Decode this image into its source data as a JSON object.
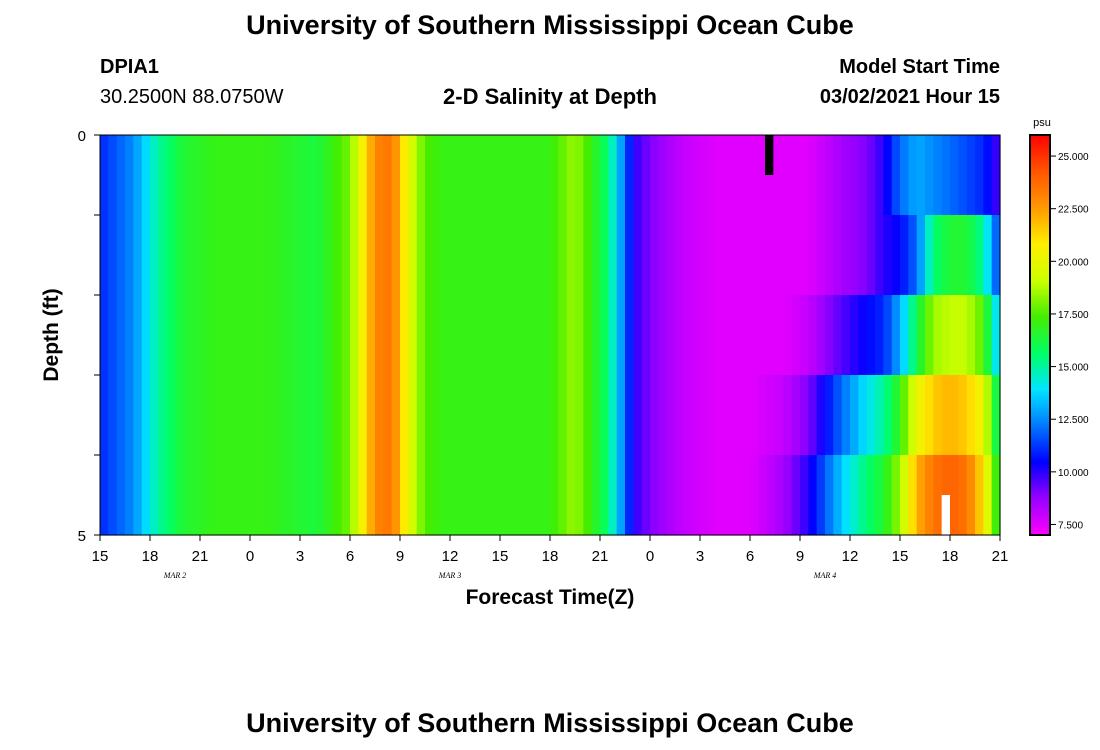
{
  "header": {
    "title": "University of Southern Mississippi Ocean Cube",
    "station_id": "DPIA1",
    "station_coords": "30.2500N 88.0750W",
    "plot_title": "2-D Salinity at Depth",
    "model_start_label": "Model Start Time",
    "model_start_value": "03/02/2021 Hour 15"
  },
  "footer": {
    "title": "University of Southern Mississippi Ocean Cube"
  },
  "chart_data": {
    "type": "heatmap",
    "xlabel": "Forecast Time(Z)",
    "ylabel": "Depth (ft)",
    "x_tick_labels": [
      "15",
      "18",
      "21",
      "0",
      "3",
      "6",
      "9",
      "12",
      "15",
      "18",
      "21",
      "0",
      "3",
      "6",
      "9",
      "12",
      "15",
      "18",
      "21"
    ],
    "date_labels": [
      {
        "label": "MAR 2",
        "tick_index": 1.5
      },
      {
        "label": "MAR 3",
        "tick_index": 7
      },
      {
        "label": "MAR 4",
        "tick_index": 14.5
      }
    ],
    "x_range_hours": [
      0,
      54
    ],
    "y_range": [
      0,
      5
    ],
    "y_tick_labels": [
      "0",
      "5"
    ],
    "colorbar": {
      "unit": "psu",
      "range": [
        7,
        26
      ],
      "tick_labels": [
        "7.500",
        "10.000",
        "12.500",
        "15.000",
        "17.500",
        "20.000",
        "22.500",
        "25.000"
      ],
      "tick_values": [
        7.5,
        10,
        12.5,
        15,
        17.5,
        20,
        22.5,
        25
      ],
      "colors": [
        "#ff00ff",
        "#9900ff",
        "#0000ff",
        "#0077ff",
        "#00e5ff",
        "#00ff66",
        "#44ee00",
        "#ccff00",
        "#ffee00",
        "#ff9900",
        "#ff5500",
        "#ff0000"
      ]
    },
    "depth_layers": [
      0,
      1,
      2,
      3,
      4,
      5
    ],
    "salinity_profiles": {
      "hours": [
        0,
        2,
        3.5,
        5,
        7,
        10,
        13,
        15,
        16.5,
        17.5,
        18.5,
        19.5,
        20.5,
        24,
        27,
        28.5,
        30.5,
        31.5,
        32,
        33,
        35,
        37,
        39,
        41,
        42.5,
        44.5,
        46,
        47,
        48,
        49,
        50,
        51,
        52,
        53,
        54
      ],
      "layer1": [
        11.0,
        12.5,
        15.0,
        16.5,
        17.0,
        17.0,
        16.3,
        18.0,
        23.0,
        23.5,
        20.0,
        17.5,
        17.0,
        17.0,
        17.0,
        18.5,
        15.5,
        12.0,
        10.0,
        9.0,
        8.0,
        7.5,
        7.5,
        7.5,
        7.5,
        8.5,
        9.0,
        10.0,
        12.0,
        13.0,
        12.5,
        12.0,
        11.5,
        11.0,
        9.5
      ],
      "layer2": [
        11.0,
        12.5,
        15.0,
        16.5,
        17.0,
        17.0,
        16.3,
        18.0,
        23.0,
        23.5,
        20.0,
        17.5,
        17.0,
        17.0,
        17.0,
        18.5,
        15.5,
        12.0,
        10.0,
        9.0,
        8.0,
        7.5,
        7.5,
        7.5,
        7.5,
        8.5,
        9.0,
        10.0,
        10.5,
        12.0,
        15.5,
        16.5,
        16.5,
        15.0,
        11.0
      ],
      "layer3": [
        11.0,
        12.5,
        15.0,
        16.5,
        17.0,
        17.0,
        16.3,
        18.0,
        23.0,
        23.5,
        20.0,
        17.5,
        17.0,
        17.0,
        17.0,
        18.5,
        15.5,
        12.0,
        10.0,
        9.0,
        8.0,
        7.5,
        7.5,
        7.5,
        8.0,
        9.5,
        10.5,
        11.0,
        13.0,
        16.0,
        18.5,
        19.0,
        19.0,
        17.5,
        13.0
      ],
      "layer4": [
        11.0,
        12.5,
        15.0,
        16.5,
        17.0,
        17.0,
        16.3,
        18.0,
        23.0,
        23.5,
        20.0,
        17.5,
        17.0,
        17.0,
        17.0,
        18.5,
        15.5,
        12.0,
        10.0,
        9.0,
        8.0,
        7.5,
        7.5,
        8.0,
        9.0,
        12.0,
        14.0,
        15.0,
        17.0,
        20.0,
        21.5,
        22.0,
        21.5,
        20.0,
        15.0
      ],
      "layer5": [
        11.0,
        12.5,
        15.0,
        16.5,
        17.0,
        17.0,
        16.3,
        18.0,
        23.0,
        23.5,
        20.0,
        17.5,
        17.0,
        17.0,
        17.0,
        18.5,
        15.5,
        12.0,
        10.0,
        9.0,
        8.0,
        7.5,
        7.5,
        8.5,
        10.0,
        13.5,
        15.5,
        16.5,
        18.5,
        22.0,
        23.5,
        24.0,
        23.5,
        21.0,
        16.0
      ]
    },
    "missing_cells": [
      {
        "depth_from": 0,
        "depth_to": 0.5,
        "hour_from": 39.9,
        "hour_to": 40.4,
        "color": "#000000"
      },
      {
        "depth_from": 4.5,
        "depth_to": 5,
        "hour_from": 50.5,
        "hour_to": 51.0,
        "color": "#ffffff"
      }
    ]
  }
}
